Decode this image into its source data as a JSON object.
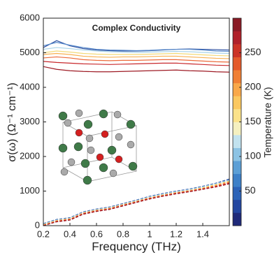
{
  "chart_data": {
    "type": "line",
    "title": "Complex Conductivity",
    "xlabel": "Frequency (THz)",
    "ylabel": "σ(ω) (Ω⁻¹ cm⁻¹)",
    "x": [
      0.2,
      0.3,
      0.4,
      0.5,
      0.6,
      0.7,
      0.8,
      0.9,
      1.0,
      1.1,
      1.2,
      1.3,
      1.4,
      1.5,
      1.6
    ],
    "xlim": [
      0.2,
      1.6
    ],
    "xticks": [
      0.2,
      0.4,
      0.6,
      0.8,
      1,
      1.2,
      1.4
    ],
    "ylim": [
      0,
      6000
    ],
    "yticks": [
      0,
      1000,
      2000,
      3000,
      4000,
      5000,
      6000
    ],
    "grid": false,
    "series": [
      {
        "color": "#2b4ea0",
        "linestyle": "solid",
        "values": [
          5150,
          5350,
          5200,
          5120,
          5080,
          5060,
          5050,
          5050,
          5060,
          5080,
          5100,
          5110,
          5100,
          5090,
          5080
        ]
      },
      {
        "color": "#5a8ccc",
        "linestyle": "solid",
        "values": [
          5200,
          5300,
          5220,
          5150,
          5100,
          5080,
          5070,
          5060,
          5070,
          5090,
          5100,
          5100,
          5080,
          5050,
          5040
        ]
      },
      {
        "color": "#a9d3e8",
        "linestyle": "solid",
        "values": [
          5100,
          5150,
          5120,
          5080,
          5050,
          5030,
          5020,
          5010,
          5020,
          5030,
          5040,
          5030,
          5010,
          4990,
          4980
        ]
      },
      {
        "color": "#f3d978",
        "linestyle": "solid",
        "values": [
          5000,
          5050,
          5020,
          4980,
          4960,
          4950,
          4950,
          4950,
          4960,
          4970,
          4980,
          4960,
          4940,
          4920,
          4910
        ]
      },
      {
        "color": "#f8b050",
        "linestyle": "solid",
        "values": [
          4950,
          4980,
          4950,
          4900,
          4880,
          4870,
          4880,
          4880,
          4890,
          4900,
          4900,
          4880,
          4860,
          4840,
          4830
        ]
      },
      {
        "color": "#ec6a3a",
        "linestyle": "solid",
        "values": [
          4850,
          4880,
          4850,
          4800,
          4780,
          4770,
          4780,
          4780,
          4790,
          4800,
          4800,
          4780,
          4760,
          4740,
          4730
        ]
      },
      {
        "color": "#c8282c",
        "linestyle": "solid",
        "values": [
          4750,
          4720,
          4700,
          4680,
          4670,
          4660,
          4670,
          4680,
          4690,
          4700,
          4700,
          4680,
          4660,
          4640,
          4630
        ]
      },
      {
        "color": "#9e1a24",
        "linestyle": "solid",
        "values": [
          4600,
          4520,
          4480,
          4460,
          4450,
          4450,
          4460,
          4470,
          4480,
          4490,
          4500,
          4480,
          4470,
          4450,
          4440
        ]
      },
      {
        "color": "#2b4ea0",
        "linestyle": "dashed",
        "values": [
          60,
          180,
          230,
          400,
          480,
          540,
          640,
          740,
          850,
          930,
          1000,
          1060,
          1140,
          1230,
          1350
        ]
      },
      {
        "color": "#5a8ccc",
        "linestyle": "dashed",
        "values": [
          50,
          170,
          220,
          390,
          470,
          530,
          630,
          730,
          840,
          920,
          990,
          1050,
          1130,
          1220,
          1330
        ]
      },
      {
        "color": "#a9d3e8",
        "linestyle": "dashed",
        "values": [
          40,
          160,
          210,
          380,
          460,
          520,
          620,
          720,
          830,
          910,
          980,
          1040,
          1120,
          1210,
          1310
        ]
      },
      {
        "color": "#f3d978",
        "linestyle": "dashed",
        "values": [
          30,
          150,
          200,
          370,
          450,
          510,
          610,
          710,
          810,
          890,
          960,
          1020,
          1100,
          1190,
          1290
        ]
      },
      {
        "color": "#f8b050",
        "linestyle": "dashed",
        "values": [
          20,
          140,
          190,
          360,
          440,
          500,
          600,
          700,
          800,
          880,
          950,
          1010,
          1080,
          1170,
          1270
        ]
      },
      {
        "color": "#ec6a3a",
        "linestyle": "dashed",
        "values": [
          10,
          130,
          180,
          350,
          430,
          490,
          590,
          690,
          790,
          870,
          940,
          1000,
          1070,
          1150,
          1250
        ]
      },
      {
        "color": "#c8282c",
        "linestyle": "dashed",
        "values": [
          0,
          120,
          170,
          340,
          420,
          480,
          580,
          680,
          780,
          860,
          930,
          990,
          1060,
          1130,
          1230
        ]
      },
      {
        "color": "#9e1a24",
        "linestyle": "dashed",
        "values": [
          0,
          110,
          160,
          330,
          410,
          470,
          570,
          670,
          770,
          850,
          920,
          980,
          1050,
          1120,
          1210
        ]
      }
    ],
    "colorbar": {
      "label": "Temperature (K)",
      "lim": [
        0,
        300
      ],
      "ticks": [
        50,
        100,
        150,
        200,
        250
      ],
      "colors": [
        "#1f2a7a",
        "#2346a0",
        "#2c63b8",
        "#3d80c8",
        "#5c9fd6",
        "#8cc3e4",
        "#c2e2ef",
        "#f5f0c0",
        "#fbe28a",
        "#fbc860",
        "#f9a84a",
        "#f08035",
        "#e45a2b",
        "#cc3326",
        "#b0202a",
        "#8a1a25"
      ]
    }
  }
}
